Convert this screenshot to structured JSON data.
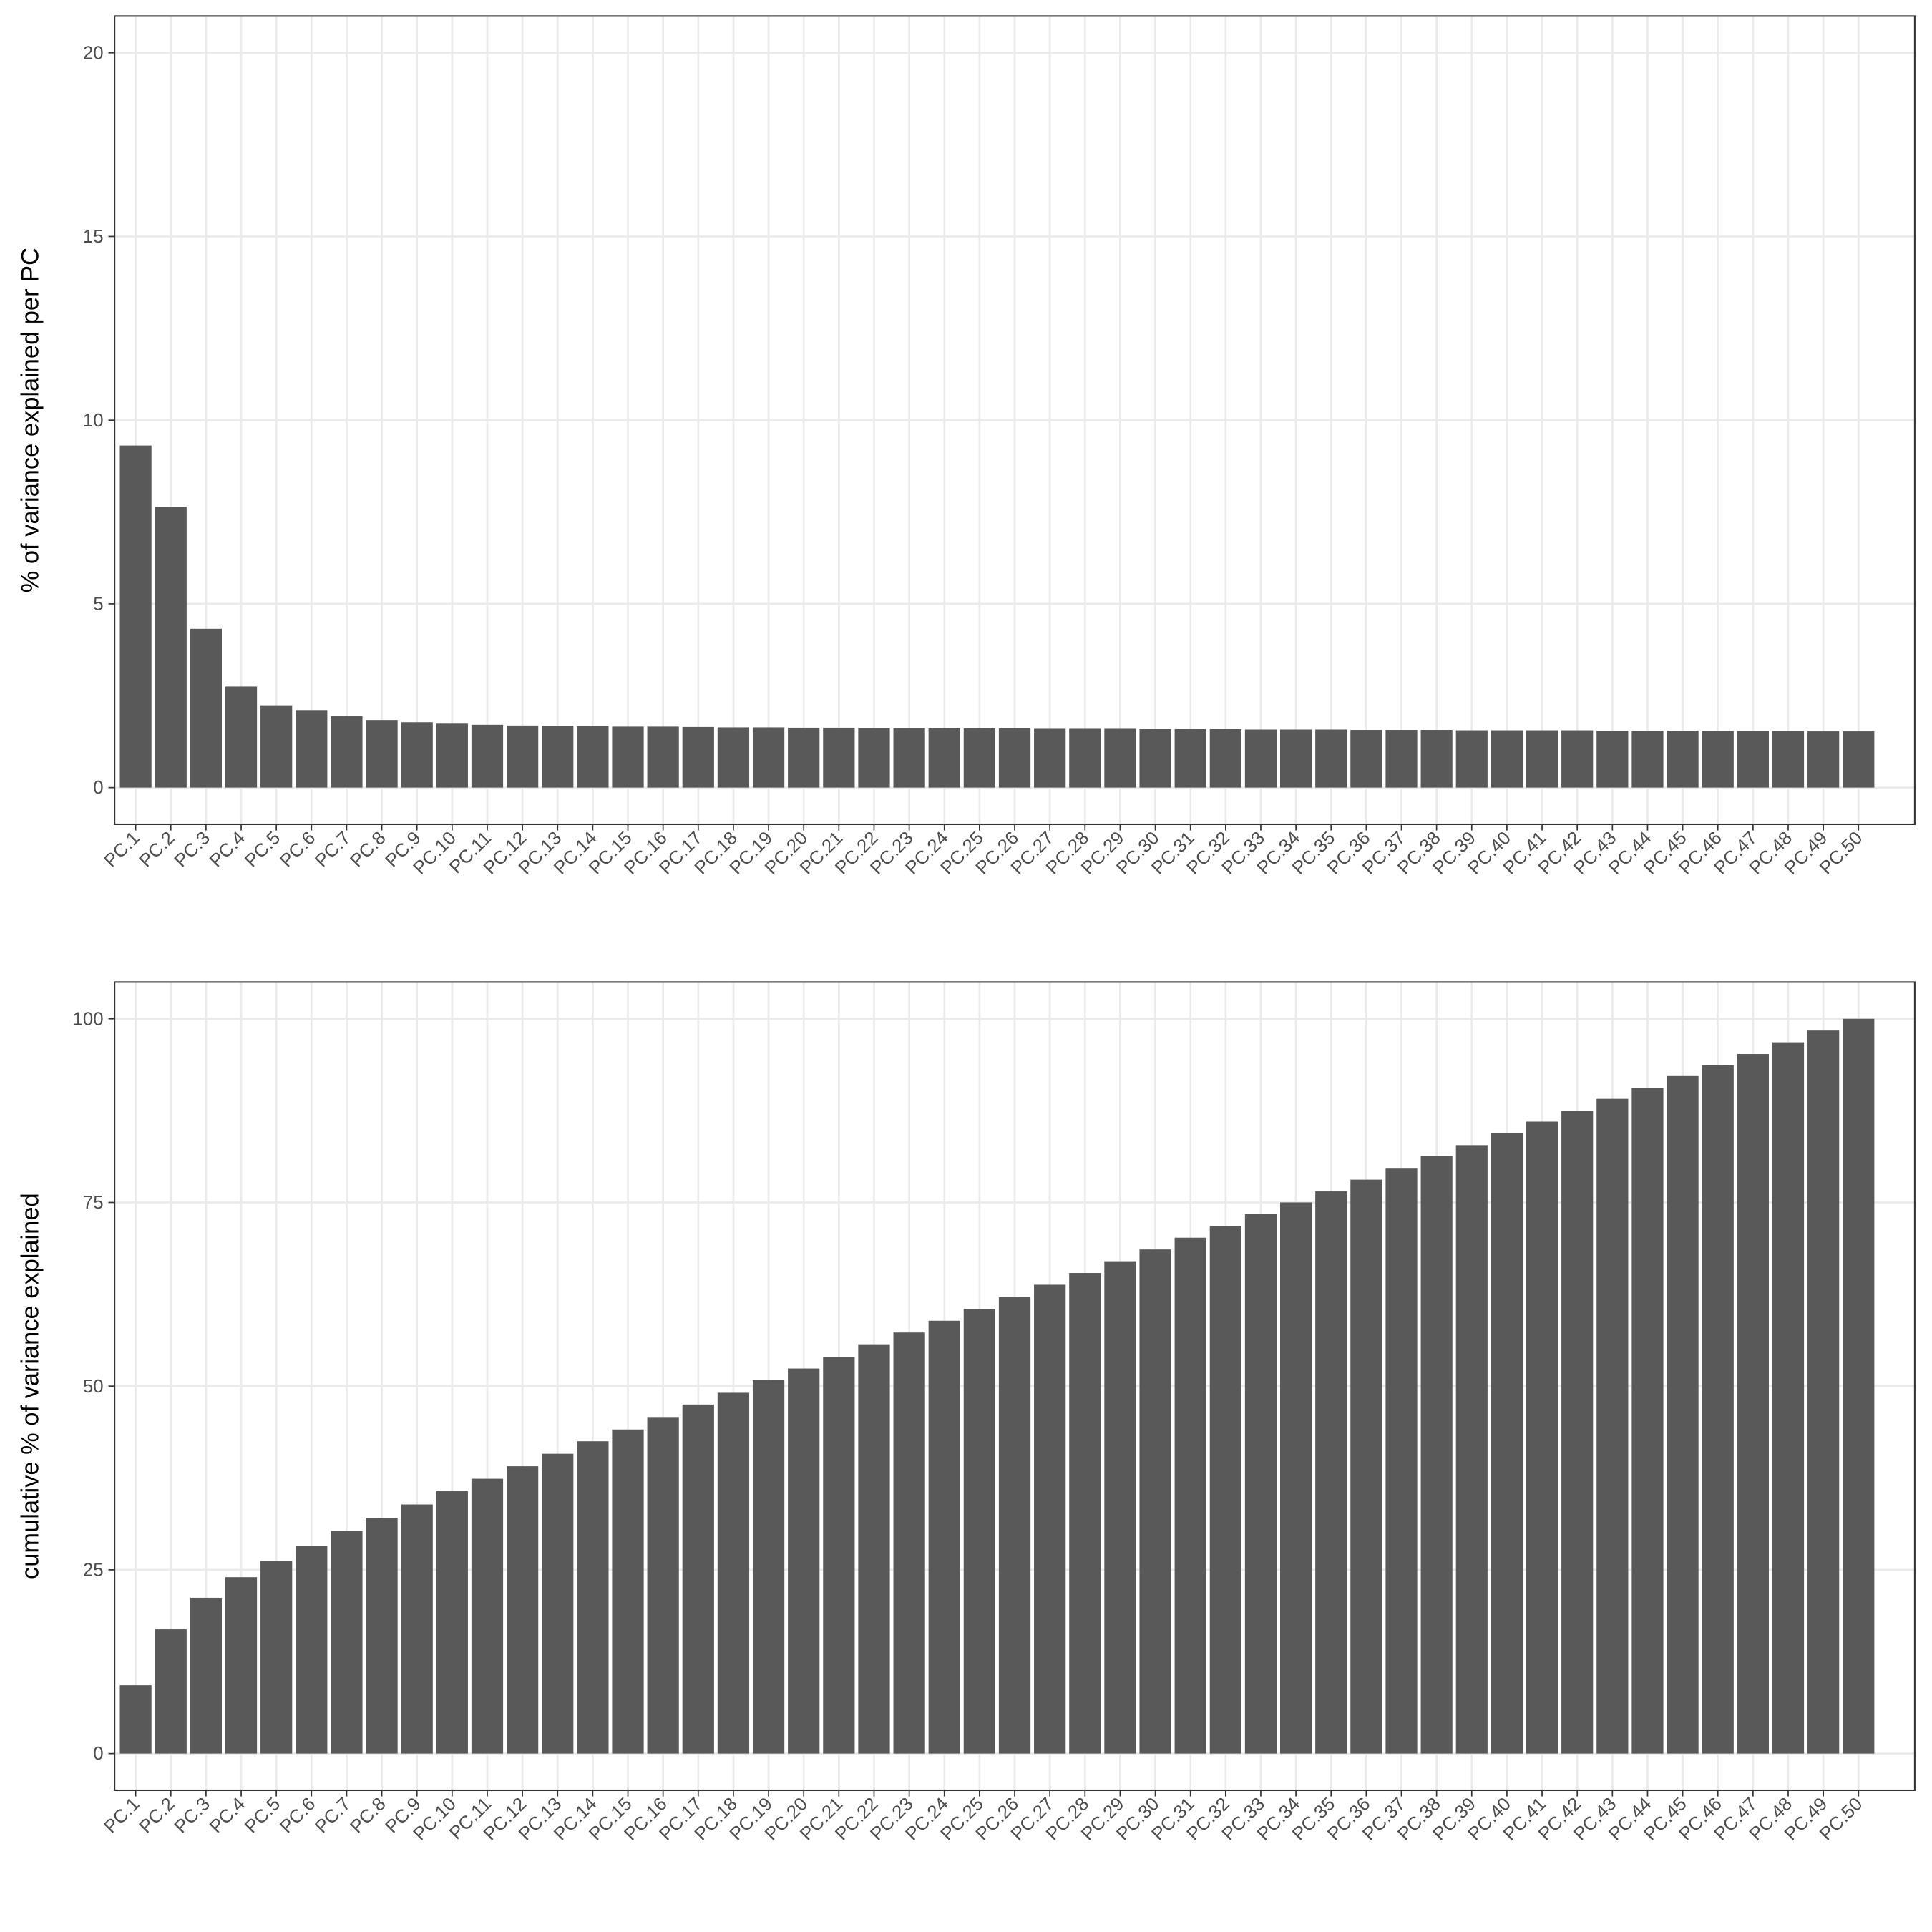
{
  "chart_data": [
    {
      "type": "bar",
      "ylabel": "% of variance explained per PC",
      "categories": [
        "PC.1",
        "PC.2",
        "PC.3",
        "PC.4",
        "PC.5",
        "PC.6",
        "PC.7",
        "PC.8",
        "PC.9",
        "PC.10",
        "PC.11",
        "PC.12",
        "PC.13",
        "PC.14",
        "PC.15",
        "PC.16",
        "PC.17",
        "PC.18",
        "PC.19",
        "PC.20",
        "PC.21",
        "PC.22",
        "PC.23",
        "PC.24",
        "PC.25",
        "PC.26",
        "PC.27",
        "PC.28",
        "PC.29",
        "PC.30",
        "PC.31",
        "PC.32",
        "PC.33",
        "PC.34",
        "PC.35",
        "PC.36",
        "PC.37",
        "PC.38",
        "PC.39",
        "PC.40",
        "PC.41",
        "PC.42",
        "PC.43",
        "PC.44",
        "PC.45",
        "PC.46",
        "PC.47",
        "PC.48",
        "PC.49",
        "PC.50"
      ],
      "values": [
        9.31,
        7.64,
        4.32,
        2.75,
        2.24,
        2.11,
        1.94,
        1.84,
        1.78,
        1.74,
        1.71,
        1.69,
        1.68,
        1.67,
        1.66,
        1.66,
        1.65,
        1.64,
        1.64,
        1.63,
        1.63,
        1.62,
        1.62,
        1.61,
        1.61,
        1.61,
        1.6,
        1.6,
        1.6,
        1.59,
        1.59,
        1.59,
        1.58,
        1.58,
        1.58,
        1.57,
        1.57,
        1.57,
        1.56,
        1.56,
        1.56,
        1.56,
        1.55,
        1.55,
        1.55,
        1.54,
        1.54,
        1.54,
        1.53,
        1.53
      ],
      "color": "#595959",
      "ylim": [
        -1.0,
        21.0
      ],
      "yticks": [
        0,
        5,
        10,
        15,
        20
      ],
      "grid": true
    },
    {
      "type": "bar",
      "ylabel": "cumulative % of variance explained",
      "categories": [
        "PC.1",
        "PC.2",
        "PC.3",
        "PC.4",
        "PC.5",
        "PC.6",
        "PC.7",
        "PC.8",
        "PC.9",
        "PC.10",
        "PC.11",
        "PC.12",
        "PC.13",
        "PC.14",
        "PC.15",
        "PC.16",
        "PC.17",
        "PC.18",
        "PC.19",
        "PC.20",
        "PC.21",
        "PC.22",
        "PC.23",
        "PC.24",
        "PC.25",
        "PC.26",
        "PC.27",
        "PC.28",
        "PC.29",
        "PC.30",
        "PC.31",
        "PC.32",
        "PC.33",
        "PC.34",
        "PC.35",
        "PC.36",
        "PC.37",
        "PC.38",
        "PC.39",
        "PC.40",
        "PC.41",
        "PC.42",
        "PC.43",
        "PC.44",
        "PC.45",
        "PC.46",
        "PC.47",
        "PC.48",
        "PC.49",
        "PC.50"
      ],
      "values": [
        9.3,
        16.9,
        21.2,
        24.0,
        26.2,
        28.3,
        30.3,
        32.1,
        33.9,
        35.7,
        37.4,
        39.1,
        40.8,
        42.5,
        44.1,
        45.8,
        47.5,
        49.1,
        50.8,
        52.4,
        54.0,
        55.7,
        57.3,
        58.9,
        60.5,
        62.1,
        63.8,
        65.4,
        67.0,
        68.6,
        70.2,
        71.8,
        73.4,
        75.0,
        76.5,
        78.1,
        79.7,
        81.3,
        82.8,
        84.4,
        86.0,
        87.5,
        89.1,
        90.6,
        92.2,
        93.7,
        95.2,
        96.8,
        98.4,
        100
      ],
      "color": "#595959",
      "ylim": [
        -5,
        105
      ],
      "yticks": [
        0,
        25,
        50,
        75,
        100
      ],
      "grid": true
    }
  ]
}
